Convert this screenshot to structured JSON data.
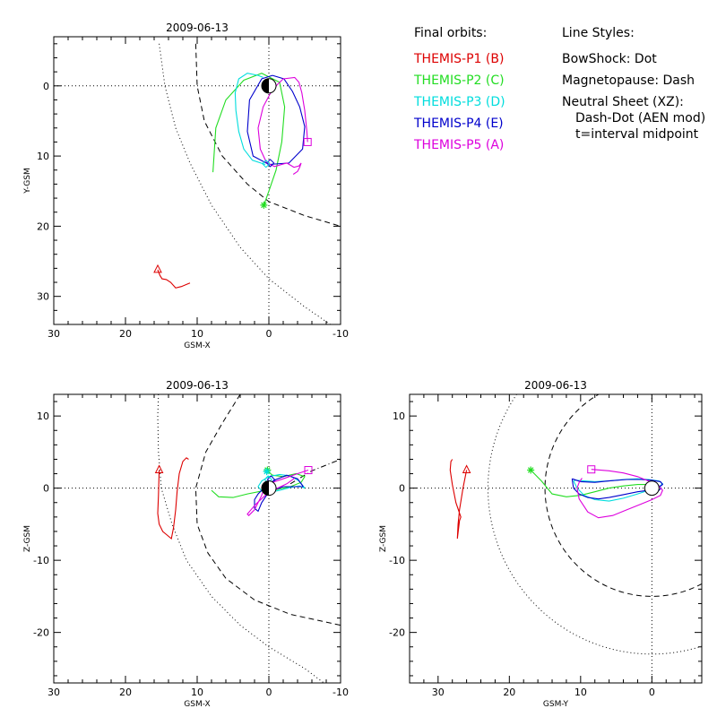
{
  "legend": {
    "orbits_title": "Final orbits:",
    "probes": [
      {
        "label": "THEMIS-P1 (B)",
        "color": "#dd0000"
      },
      {
        "label": "THEMIS-P2 (C)",
        "color": "#22dd22"
      },
      {
        "label": "THEMIS-P3 (D)",
        "color": "#00dddd"
      },
      {
        "label": "THEMIS-P4 (E)",
        "color": "#0000cc"
      },
      {
        "label": "THEMIS-P5 (A)",
        "color": "#dd00dd"
      }
    ],
    "styles_title": "Line Styles:",
    "styles": [
      "BowShock: Dot",
      "Magnetopause: Dash",
      "Neutral Sheet (XZ):",
      "Dash-Dot (AEN mod)",
      "t=interval midpoint"
    ]
  },
  "chart_data": [
    {
      "type": "line",
      "title": "2009-06-13",
      "xlabel": "GSM-X",
      "ylabel": "Y-GSM",
      "xlim": [
        30,
        -10
      ],
      "ylim": [
        34,
        -7
      ],
      "xticks": [
        30,
        20,
        10,
        0,
        -10
      ],
      "yticks": [
        0,
        10,
        20,
        30
      ],
      "bowshock": [
        [
          15.3,
          -6
        ],
        [
          14.5,
          0
        ],
        [
          13,
          6
        ],
        [
          11,
          11
        ],
        [
          8,
          17
        ],
        [
          4,
          23
        ],
        [
          0,
          27.5
        ],
        [
          -5,
          31.5
        ],
        [
          -10,
          35
        ]
      ],
      "magnetopause": [
        [
          10.2,
          -6
        ],
        [
          10,
          0
        ],
        [
          9,
          5
        ],
        [
          6.5,
          10
        ],
        [
          3,
          14
        ],
        [
          0,
          16.5
        ],
        [
          -5,
          18.5
        ],
        [
          -10,
          20
        ]
      ],
      "series": [
        {
          "name": "THEMIS-P1 (B)",
          "color": "#dd0000",
          "x": [
            15.5,
            15.2,
            14.9,
            14.3,
            13.7,
            13.0,
            12.2,
            11.5,
            11.0
          ],
          "y": [
            26.2,
            27.0,
            27.5,
            27.6,
            28.0,
            28.8,
            28.6,
            28.3,
            28.1
          ],
          "marker": "triangle",
          "marker_index": 0
        },
        {
          "name": "THEMIS-P2 (C)",
          "color": "#22dd22",
          "x": [
            7.8,
            7.4,
            6.0,
            3.5,
            1.0,
            -1.5,
            -2.2,
            -1.8,
            -1.0,
            0,
            0.7
          ],
          "y": [
            12.3,
            6.0,
            2.0,
            -0.8,
            -1.8,
            -0.5,
            3.0,
            8.0,
            12.0,
            15.0,
            17.0
          ],
          "marker": "star",
          "marker_index": 10
        },
        {
          "name": "THEMIS-P3 (D)",
          "color": "#00dddd",
          "x": [
            0.5,
            2.3,
            3.5,
            4.2,
            4.6,
            4.7,
            4.2,
            3.0,
            1.5,
            0.8
          ],
          "y": [
            11.2,
            10.6,
            9.0,
            6.5,
            3.5,
            1.0,
            -1.0,
            -1.8,
            -1.5,
            -1.2
          ]
        },
        {
          "name": "THEMIS-P4 (E)",
          "color": "#0000cc",
          "x": [
            -0.5,
            -2.1,
            -3.3,
            -4.3,
            -5.0,
            -4.7,
            -2.8,
            0.0,
            2.2,
            3.0,
            2.7,
            1.0,
            -0.5
          ],
          "y": [
            -1.5,
            -1.0,
            0.8,
            3.0,
            5.8,
            9.0,
            11.0,
            11.2,
            10.0,
            6.5,
            2.0,
            -1.0,
            -1.5
          ]
        },
        {
          "name": "THEMIS-P5 (A)",
          "color": "#dd00dd",
          "x": [
            -5.4,
            -5.3,
            -5.0,
            -4.6,
            -4.2,
            -3.6,
            -2.0,
            -0.5,
            0.8,
            1.5,
            1.2,
            0.3,
            -0.8,
            -2.5,
            -3.5,
            -4.2,
            -4.5,
            -4.3,
            -4.0,
            -3.4
          ],
          "y": [
            8.0,
            6.5,
            3.5,
            1.0,
            -0.5,
            -1.2,
            -1.0,
            0.5,
            3.0,
            6.0,
            9.0,
            11.0,
            11.5,
            11.0,
            11.6,
            11.4,
            11.0,
            11.6,
            12.2,
            12.6
          ],
          "marker": "square",
          "marker_index": 0
        }
      ],
      "extra_markers": [
        {
          "shape": "diamond",
          "color": "#0000cc",
          "x": -0.2,
          "y": 11.0
        },
        {
          "shape": "diamond",
          "color": "#00dddd",
          "x": 0.4,
          "y": 11.1
        }
      ],
      "earth": {
        "x": 0,
        "y": 0,
        "r": 1,
        "dark_side": "left"
      }
    },
    {
      "type": "line",
      "title": "2009-06-13",
      "xlabel": "GSM-X",
      "ylabel": "Z-GSM",
      "xlim": [
        30,
        -10
      ],
      "ylim": [
        -27,
        13
      ],
      "xticks": [
        30,
        20,
        10,
        0,
        -10
      ],
      "yticks": [
        10,
        0,
        -10,
        -20
      ],
      "bowshock": [
        [
          15.4,
          13
        ],
        [
          15.5,
          10
        ],
        [
          15.4,
          5
        ],
        [
          15.0,
          0
        ],
        [
          13.5,
          -5
        ],
        [
          11.5,
          -10
        ],
        [
          8,
          -15
        ],
        [
          4,
          -19
        ],
        [
          0,
          -22
        ],
        [
          -5,
          -25
        ],
        [
          -9,
          -28
        ]
      ],
      "magnetopause": [
        [
          4,
          13
        ],
        [
          6.5,
          9
        ],
        [
          8.8,
          5
        ],
        [
          10.2,
          0
        ],
        [
          10,
          -5
        ],
        [
          8.5,
          -9
        ],
        [
          6,
          -12.5
        ],
        [
          2,
          -15.5
        ],
        [
          -3,
          -17.5
        ],
        [
          -10,
          -19
        ]
      ],
      "neutral_sheet": [
        [
          -3,
          0.6
        ],
        [
          -6,
          2.4
        ],
        [
          -10,
          4.0
        ]
      ],
      "series": [
        {
          "name": "THEMIS-P1 (B)",
          "color": "#dd0000",
          "x": [
            15.3,
            15.4,
            15.5,
            15.3,
            14.8,
            14.2,
            13.6,
            13.3,
            13.0,
            12.8,
            12.5,
            12.0,
            11.5,
            11.2
          ],
          "y": [
            2.5,
            -1.0,
            -3.5,
            -5.0,
            -6.0,
            -6.5,
            -7.0,
            -5.5,
            -3.0,
            -0.5,
            2.0,
            3.7,
            4.2,
            4.0
          ],
          "marker": "triangle",
          "marker_index": 0
        },
        {
          "name": "THEMIS-P2 (C)",
          "color": "#22dd22",
          "x": [
            8.0,
            7.0,
            5.0,
            3.0,
            1.0,
            -1.0,
            -3.0,
            -4.5,
            -5.0,
            -3.8,
            -2.0,
            -0.5,
            0,
            0.2
          ],
          "y": [
            -0.3,
            -1.2,
            -1.3,
            -0.8,
            -0.4,
            -0.2,
            0.2,
            0.8,
            1.6,
            2.0,
            1.6,
            1.8,
            2.2,
            2.5
          ],
          "marker": "star",
          "marker_index": 13
        },
        {
          "name": "THEMIS-P3 (D)",
          "color": "#00dddd",
          "x": [
            -5.0,
            -4.2,
            -3.0,
            -1.5,
            0,
            1.0,
            1.5,
            1.0,
            0,
            -1.5,
            -3.0,
            -4.3,
            -5.0
          ],
          "y": [
            0.0,
            1.0,
            1.7,
            1.9,
            1.6,
            1.0,
            0.2,
            -0.4,
            -0.6,
            -0.3,
            0.1,
            0.3,
            0.0
          ]
        },
        {
          "name": "THEMIS-P4 (E)",
          "color": "#0000cc",
          "x": [
            -4.8,
            -4.0,
            -2.5,
            -1.0,
            0.5,
            1.5,
            2.0,
            2.0,
            1.5,
            1.0,
            0,
            -2.0,
            -3.8,
            -4.8
          ],
          "y": [
            0.2,
            1.3,
            1.8,
            1.2,
            0.2,
            -0.8,
            -1.6,
            -2.8,
            -3.2,
            -2.0,
            -0.5,
            0.2,
            0.2,
            0.2
          ]
        },
        {
          "name": "THEMIS-P5 (A)",
          "color": "#dd00dd",
          "x": [
            -5.5,
            -4.0,
            -2.0,
            -0.5,
            0.3,
            0.8,
            1.0,
            1.5,
            2.0,
            2.8,
            3.0,
            2.5,
            1.8,
            0.5,
            -1.2,
            -2.5,
            -3.2,
            -3.6
          ],
          "y": [
            2.5,
            2.0,
            1.3,
            0.8,
            0.2,
            -0.4,
            -1.0,
            -2.0,
            -3.0,
            -3.8,
            -3.6,
            -3.0,
            -2.2,
            -1.0,
            0,
            0.6,
            1.1,
            1.4
          ],
          "marker": "square",
          "marker_index": 0
        }
      ],
      "extra_markers": [
        {
          "shape": "star",
          "color": "#00dddd",
          "x": 0.3,
          "y": 2.3
        },
        {
          "shape": "diamond",
          "color": "#0000cc",
          "x": -0.3,
          "y": 1.2
        },
        {
          "shape": "diamond",
          "color": "#00dddd",
          "x": 0.1,
          "y": 1.2
        }
      ],
      "earth": {
        "x": 0,
        "y": 0,
        "r": 1,
        "dark_side": "left"
      }
    },
    {
      "type": "line",
      "title": "2009-06-13",
      "xlabel": "GSM-Y",
      "ylabel": "Z-GSM",
      "xlim": [
        34,
        -7
      ],
      "ylim": [
        -27,
        13
      ],
      "xticks": [
        30,
        20,
        10,
        0
      ],
      "yticks": [
        10,
        0,
        -10,
        -20
      ],
      "bowshock_circle": {
        "cx": 0,
        "cy": 0,
        "r": 23
      },
      "magnetopause_circle": {
        "cx": 0,
        "cy": 0,
        "r": 15
      },
      "series": [
        {
          "name": "THEMIS-P1 (B)",
          "color": "#dd0000",
          "x": [
            26.0,
            26.5,
            27.0,
            27.2,
            27.3,
            27.0,
            26.8,
            27.5,
            28.0,
            28.3,
            28.2,
            28.0
          ],
          "y": [
            2.5,
            0,
            -3.0,
            -5.0,
            -7.0,
            -4.5,
            -4.0,
            -2.0,
            0.5,
            2.5,
            3.7,
            4.0
          ],
          "marker": "triangle",
          "marker_index": 0
        },
        {
          "name": "THEMIS-P2 (C)",
          "color": "#22dd22",
          "x": [
            17.0,
            15.5,
            14.0,
            12.0,
            10.0,
            8.0,
            6.0,
            4.0,
            2.0,
            0.5
          ],
          "y": [
            2.5,
            1.0,
            -0.8,
            -1.2,
            -1.0,
            -0.5,
            0,
            0.3,
            0.5,
            0.5
          ],
          "marker": "star",
          "marker_index": 0
        },
        {
          "name": "THEMIS-P3 (D)",
          "color": "#00dddd",
          "x": [
            11.0,
            10.5,
            9.5,
            8.0,
            6.0,
            4.0,
            2.0,
            0.5,
            -1.0,
            -1.5,
            -1.0,
            0.5,
            2.0,
            4.0,
            6.0,
            8.0,
            9.5,
            10.8,
            11.0
          ],
          "y": [
            1.0,
            0.0,
            -1.0,
            -1.6,
            -1.8,
            -1.4,
            -0.8,
            -0.3,
            0.2,
            0.6,
            1.0,
            1.2,
            1.3,
            1.2,
            1.0,
            0.9,
            1.0,
            1.1,
            1.0
          ]
        },
        {
          "name": "THEMIS-P4 (E)",
          "color": "#0000cc",
          "x": [
            11.2,
            11.0,
            10.2,
            9.0,
            7.5,
            6.0,
            4.0,
            2.0,
            0.5,
            -0.8,
            -1.5,
            -1.2,
            0,
            1.5,
            3.5,
            6.0,
            8.0,
            10.0,
            11.2
          ],
          "y": [
            1.3,
            0.0,
            -0.8,
            -1.3,
            -1.5,
            -1.3,
            -0.9,
            -0.5,
            -0.3,
            0.0,
            0.5,
            0.9,
            1.1,
            1.2,
            1.2,
            1.0,
            0.8,
            0.9,
            1.3
          ],
          "marker": "diamond",
          "marker_index": 9
        },
        {
          "name": "THEMIS-P5 (A)",
          "color": "#dd00dd",
          "x": [
            8.5,
            6.0,
            4.0,
            2.0,
            0.5,
            -0.8,
            -1.5,
            -1.2,
            0,
            1.5,
            3.5,
            5.5,
            7.5,
            9.0,
            10.2,
            10.5,
            10.2,
            9.8
          ],
          "y": [
            2.6,
            2.4,
            2.1,
            1.6,
            1.0,
            0.5,
            -0.3,
            -1.0,
            -1.6,
            -2.2,
            -3.0,
            -3.8,
            -4.1,
            -3.3,
            -1.5,
            0.0,
            0.8,
            1.4
          ],
          "marker": "square",
          "marker_index": 0
        }
      ],
      "earth": {
        "x": 0,
        "y": 0,
        "r": 1,
        "dark_side": "none"
      }
    }
  ]
}
